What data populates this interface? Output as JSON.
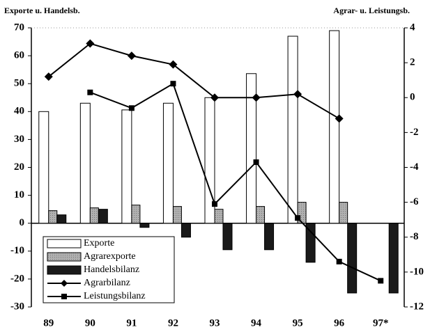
{
  "chart_data": {
    "type": "bar",
    "y_axis_title": "Exporte u. Handelsb.",
    "y2_axis_title": "Agrar- u. Leistungsb.",
    "categories": [
      "89",
      "90",
      "91",
      "92",
      "93",
      "94",
      "95",
      "96",
      "97*"
    ],
    "ylim": [
      -30,
      70
    ],
    "yticks": [
      -30,
      -20,
      -10,
      0,
      10,
      20,
      30,
      40,
      50,
      60,
      70
    ],
    "y2lim": [
      -12,
      4
    ],
    "y2ticks": [
      -12,
      -10,
      -8,
      -6,
      -4,
      -2,
      0,
      2,
      4
    ],
    "series": [
      {
        "name": "Exporte",
        "type": "bar",
        "color": "#ffffff",
        "values": [
          40,
          43,
          40.6,
          43,
          45,
          53.6,
          67,
          69,
          null
        ]
      },
      {
        "name": "Agrarexporte",
        "type": "bar",
        "color": "#b0b0b0",
        "values": [
          4.5,
          5.5,
          6.5,
          6,
          5,
          6,
          7.5,
          7.5,
          null
        ]
      },
      {
        "name": "Handelsbilanz",
        "type": "bar",
        "color": "#1a1a1a",
        "values": [
          3,
          5,
          -1.5,
          -5,
          -9.5,
          -9.5,
          -14,
          -25,
          -25
        ]
      },
      {
        "name": "Agrarbilanz",
        "type": "line",
        "axis": "y2",
        "marker": "diamond",
        "color": "#000000",
        "values": [
          1.2,
          3.1,
          2.4,
          1.9,
          0,
          0,
          0.2,
          -1.2,
          null
        ]
      },
      {
        "name": "Leistungsbilanz",
        "type": "line",
        "axis": "y2",
        "marker": "square",
        "color": "#000000",
        "values": [
          null,
          0.3,
          -0.6,
          0.8,
          -6.1,
          -3.7,
          -6.9,
          -9.4,
          -10.5
        ]
      }
    ],
    "legend": "lower left"
  }
}
